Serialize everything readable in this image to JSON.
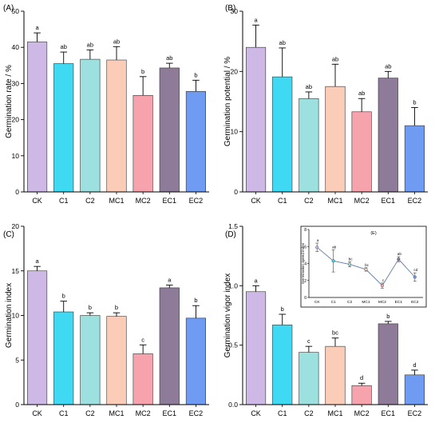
{
  "chart_data": [
    {
      "type": "bar",
      "panel_label": "(A)",
      "ylabel": "Germination rate / %",
      "categories": [
        "CK",
        "C1",
        "C2",
        "MC1",
        "MC2",
        "EC1",
        "EC2"
      ],
      "values": [
        41.5,
        35.5,
        36.7,
        36.5,
        26.7,
        34.3,
        27.8
      ],
      "errors": [
        2.5,
        3.2,
        2.6,
        3.7,
        5.2,
        1.3,
        3.1
      ],
      "letters": [
        "a",
        "ab",
        "ab",
        "ab",
        "b",
        "ab",
        "b"
      ],
      "ylim": [
        0,
        50
      ],
      "yticks": [
        0,
        10,
        20,
        30,
        40,
        50
      ],
      "colors": [
        "#cdb8e6",
        "#3fd9f4",
        "#9de0e0",
        "#fbcdb9",
        "#f7a3ae",
        "#8e7b99",
        "#6f9cf2"
      ],
      "grid": false
    },
    {
      "type": "bar",
      "panel_label": "(B)",
      "ylabel": "Germination potential / %",
      "categories": [
        "CK",
        "C1",
        "C2",
        "MC1",
        "MC2",
        "EC1",
        "EC2"
      ],
      "values": [
        24.0,
        19.1,
        15.5,
        17.5,
        13.3,
        18.9,
        11.0
      ],
      "errors": [
        3.7,
        4.8,
        1.1,
        3.7,
        2.2,
        1.1,
        3.0
      ],
      "letters": [
        "a",
        "ab",
        "ab",
        "ab",
        "ab",
        "ab",
        "b"
      ],
      "ylim": [
        0,
        30
      ],
      "yticks": [
        0,
        10,
        20,
        30
      ],
      "colors": [
        "#cdb8e6",
        "#3fd9f4",
        "#9de0e0",
        "#fbcdb9",
        "#f7a3ae",
        "#8e7b99",
        "#6f9cf2"
      ],
      "grid": false
    },
    {
      "type": "bar",
      "panel_label": "(C)",
      "ylabel": "Germination index",
      "categories": [
        "CK",
        "C1",
        "C2",
        "MC1",
        "MC2",
        "EC1",
        "EC2"
      ],
      "values": [
        15.0,
        10.4,
        10.0,
        9.9,
        5.7,
        13.1,
        9.7
      ],
      "errors": [
        0.5,
        1.2,
        0.3,
        0.4,
        1.0,
        0.3,
        1.4
      ],
      "letters": [
        "a",
        "b",
        "b",
        "b",
        "c",
        "a",
        "b"
      ],
      "ylim": [
        0,
        20
      ],
      "yticks": [
        0,
        5,
        10,
        15,
        20
      ],
      "colors": [
        "#cdb8e6",
        "#3fd9f4",
        "#9de0e0",
        "#fbcdb9",
        "#f7a3ae",
        "#8e7b99",
        "#6f9cf2"
      ],
      "grid": false
    },
    {
      "type": "bar",
      "panel_label": "(D)",
      "ylabel": "Germination vigor index",
      "categories": [
        "CK",
        "C1",
        "C2",
        "MC1",
        "MC2",
        "EC1",
        "EC2"
      ],
      "values": [
        0.95,
        0.67,
        0.44,
        0.49,
        0.16,
        0.68,
        0.25
      ],
      "errors": [
        0.05,
        0.09,
        0.05,
        0.07,
        0.02,
        0.02,
        0.04
      ],
      "letters": [
        "a",
        "b",
        "c",
        "bc",
        "d",
        "b",
        "d"
      ],
      "ylim": [
        0,
        1.5
      ],
      "yticks": [
        0,
        0.5,
        1.0,
        1.5
      ],
      "ytick_labels": [
        "0.0",
        "0.5",
        "1.0",
        "1.5"
      ],
      "colors": [
        "#cdb8e6",
        "#3fd9f4",
        "#9de0e0",
        "#fbcdb9",
        "#f7a3ae",
        "#8e7b99",
        "#6f9cf2"
      ],
      "grid": false,
      "inset": {
        "type": "line",
        "panel_label": "(E)",
        "ylabel": "Germination speed index",
        "categories": [
          "CK",
          "C1",
          "C2",
          "MC1",
          "MC2",
          "EC1",
          "EC2"
        ],
        "values": [
          5.9,
          4.3,
          3.9,
          3.3,
          1.4,
          4.5,
          2.4
        ],
        "errors": [
          0.5,
          1.3,
          0.3,
          0.2,
          0.3,
          0.3,
          0.5
        ],
        "letters": [
          "a",
          "ab",
          "bc",
          "bc",
          "c",
          "ab",
          "cd"
        ],
        "ylim": [
          0,
          8
        ],
        "yticks": [
          0,
          2,
          4,
          6,
          8
        ],
        "line_color": "#5f7aa3",
        "point_colors": [
          "#cdb8e6",
          "#3fd9f4",
          "#9de0e0",
          "#fbcdb9",
          "#f7a3ae",
          "#8e7b99",
          "#6f9cf2"
        ]
      }
    }
  ]
}
